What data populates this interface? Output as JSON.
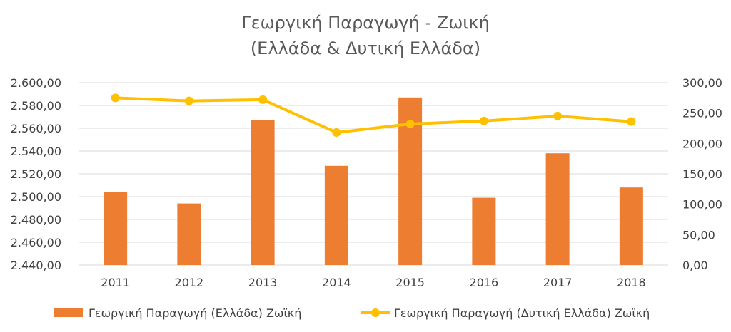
{
  "chart_data": {
    "type": "bar",
    "title_lines": [
      "Γεωργική Παραγωγή - Ζωική",
      "(Ελλάδα & Δυτική Ελλάδα)"
    ],
    "categories": [
      "2011",
      "2012",
      "2013",
      "2014",
      "2015",
      "2016",
      "2017",
      "2018"
    ],
    "series": [
      {
        "name": "Γεωργική Παραγωγή (Ελλάδα) Ζωϊκή",
        "type": "bar",
        "axis": "left",
        "color": "#ED7D31",
        "values": [
          2504,
          2494,
          2567,
          2527,
          2587,
          2499,
          2538,
          2508
        ]
      },
      {
        "name": "Γεωργική Παραγωγή (Δυτική Ελλάδα) Ζωϊκή",
        "type": "line",
        "axis": "right",
        "color": "#FFC000",
        "values": [
          275,
          270,
          272,
          218,
          232,
          237,
          245,
          236
        ]
      }
    ],
    "y_left": {
      "ylim": [
        2440,
        2600
      ],
      "ticks": [
        2600,
        2580,
        2560,
        2540,
        2520,
        2500,
        2480,
        2460,
        2440
      ],
      "tick_labels": [
        "2.600,00",
        "2.580,00",
        "2.560,00",
        "2.540,00",
        "2.520,00",
        "2.500,00",
        "2.480,00",
        "2.460,00",
        "2.440,00"
      ]
    },
    "y_right": {
      "ylim": [
        0,
        300
      ],
      "ticks": [
        300,
        250,
        200,
        150,
        100,
        50,
        0
      ],
      "tick_labels": [
        "300,00",
        "250,00",
        "200,00",
        "150,00",
        "100,00",
        "50,00",
        "0,00"
      ]
    },
    "grid": true,
    "legend_position": "bottom"
  }
}
